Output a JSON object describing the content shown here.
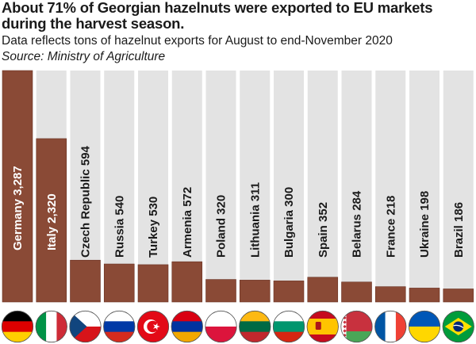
{
  "title": "About 71% of Georgian hazelnuts were exported to EU markets during the harvest season.",
  "subtitle": "Data reflects tons of hazelnut exports for August to end-November 2020",
  "source": "Source: Ministry of Agriculture",
  "chart_data": {
    "type": "bar",
    "categories": [
      "Germany",
      "Italy",
      "Czech Republic",
      "Russia",
      "Turkey",
      "Armenia",
      "Poland",
      "Lithuania",
      "Bulgaria",
      "Spain",
      "Belarus",
      "France",
      "Ukraine",
      "Brazil"
    ],
    "values": [
      3287,
      2320,
      594,
      540,
      530,
      572,
      320,
      311,
      300,
      352,
      284,
      218,
      198,
      186
    ],
    "labels": [
      "Germany 3,287",
      "Italy 2,320",
      "Czech Republic 594",
      "Russia 540",
      "Turkey 530",
      "Armenia 572",
      "Poland 320",
      "Lithuania 311",
      "Bulgaria 300",
      "Spain 352",
      "Belarus 284",
      "France 218",
      "Ukraine 198",
      "Brazil 186"
    ],
    "ylim": [
      0,
      3287
    ],
    "units": "tons",
    "bar_color": "#8a4a36",
    "track_color": "#e3e3e3"
  },
  "flags": [
    {
      "country": "Germany",
      "icon": "germany-flag-icon",
      "colors": [
        "#000000",
        "#dd0000",
        "#ffce00"
      ]
    },
    {
      "country": "Italy",
      "icon": "italy-flag-icon",
      "colors": [
        "#009246",
        "#ffffff",
        "#ce2b37"
      ]
    },
    {
      "country": "Czech Republic",
      "icon": "czech-flag-icon",
      "colors": [
        "#ffffff",
        "#d7141a",
        "#11457e"
      ]
    },
    {
      "country": "Russia",
      "icon": "russia-flag-icon",
      "colors": [
        "#ffffff",
        "#0039a6",
        "#d52b1e"
      ]
    },
    {
      "country": "Turkey",
      "icon": "turkey-flag-icon",
      "colors": [
        "#e30a17",
        "#ffffff"
      ]
    },
    {
      "country": "Armenia",
      "icon": "armenia-flag-icon",
      "colors": [
        "#d90012",
        "#0033a0",
        "#f2a800"
      ]
    },
    {
      "country": "Poland",
      "icon": "poland-flag-icon",
      "colors": [
        "#ffffff",
        "#dc143c"
      ]
    },
    {
      "country": "Lithuania",
      "icon": "lithuania-flag-icon",
      "colors": [
        "#fdb913",
        "#006a44",
        "#c1272d"
      ]
    },
    {
      "country": "Bulgaria",
      "icon": "bulgaria-flag-icon",
      "colors": [
        "#ffffff",
        "#00966e",
        "#d62612"
      ]
    },
    {
      "country": "Spain",
      "icon": "spain-flag-icon",
      "colors": [
        "#c60b1e",
        "#ffc400"
      ]
    },
    {
      "country": "Belarus",
      "icon": "belarus-flag-icon",
      "colors": [
        "#c8313e",
        "#4aa657",
        "#ffffff"
      ]
    },
    {
      "country": "France",
      "icon": "france-flag-icon",
      "colors": [
        "#0055a4",
        "#ffffff",
        "#ef4135"
      ]
    },
    {
      "country": "Ukraine",
      "icon": "ukraine-flag-icon",
      "colors": [
        "#0057b7",
        "#ffd700"
      ]
    },
    {
      "country": "Brazil",
      "icon": "brazil-flag-icon",
      "colors": [
        "#009c3b",
        "#ffdf00",
        "#002776"
      ]
    }
  ]
}
